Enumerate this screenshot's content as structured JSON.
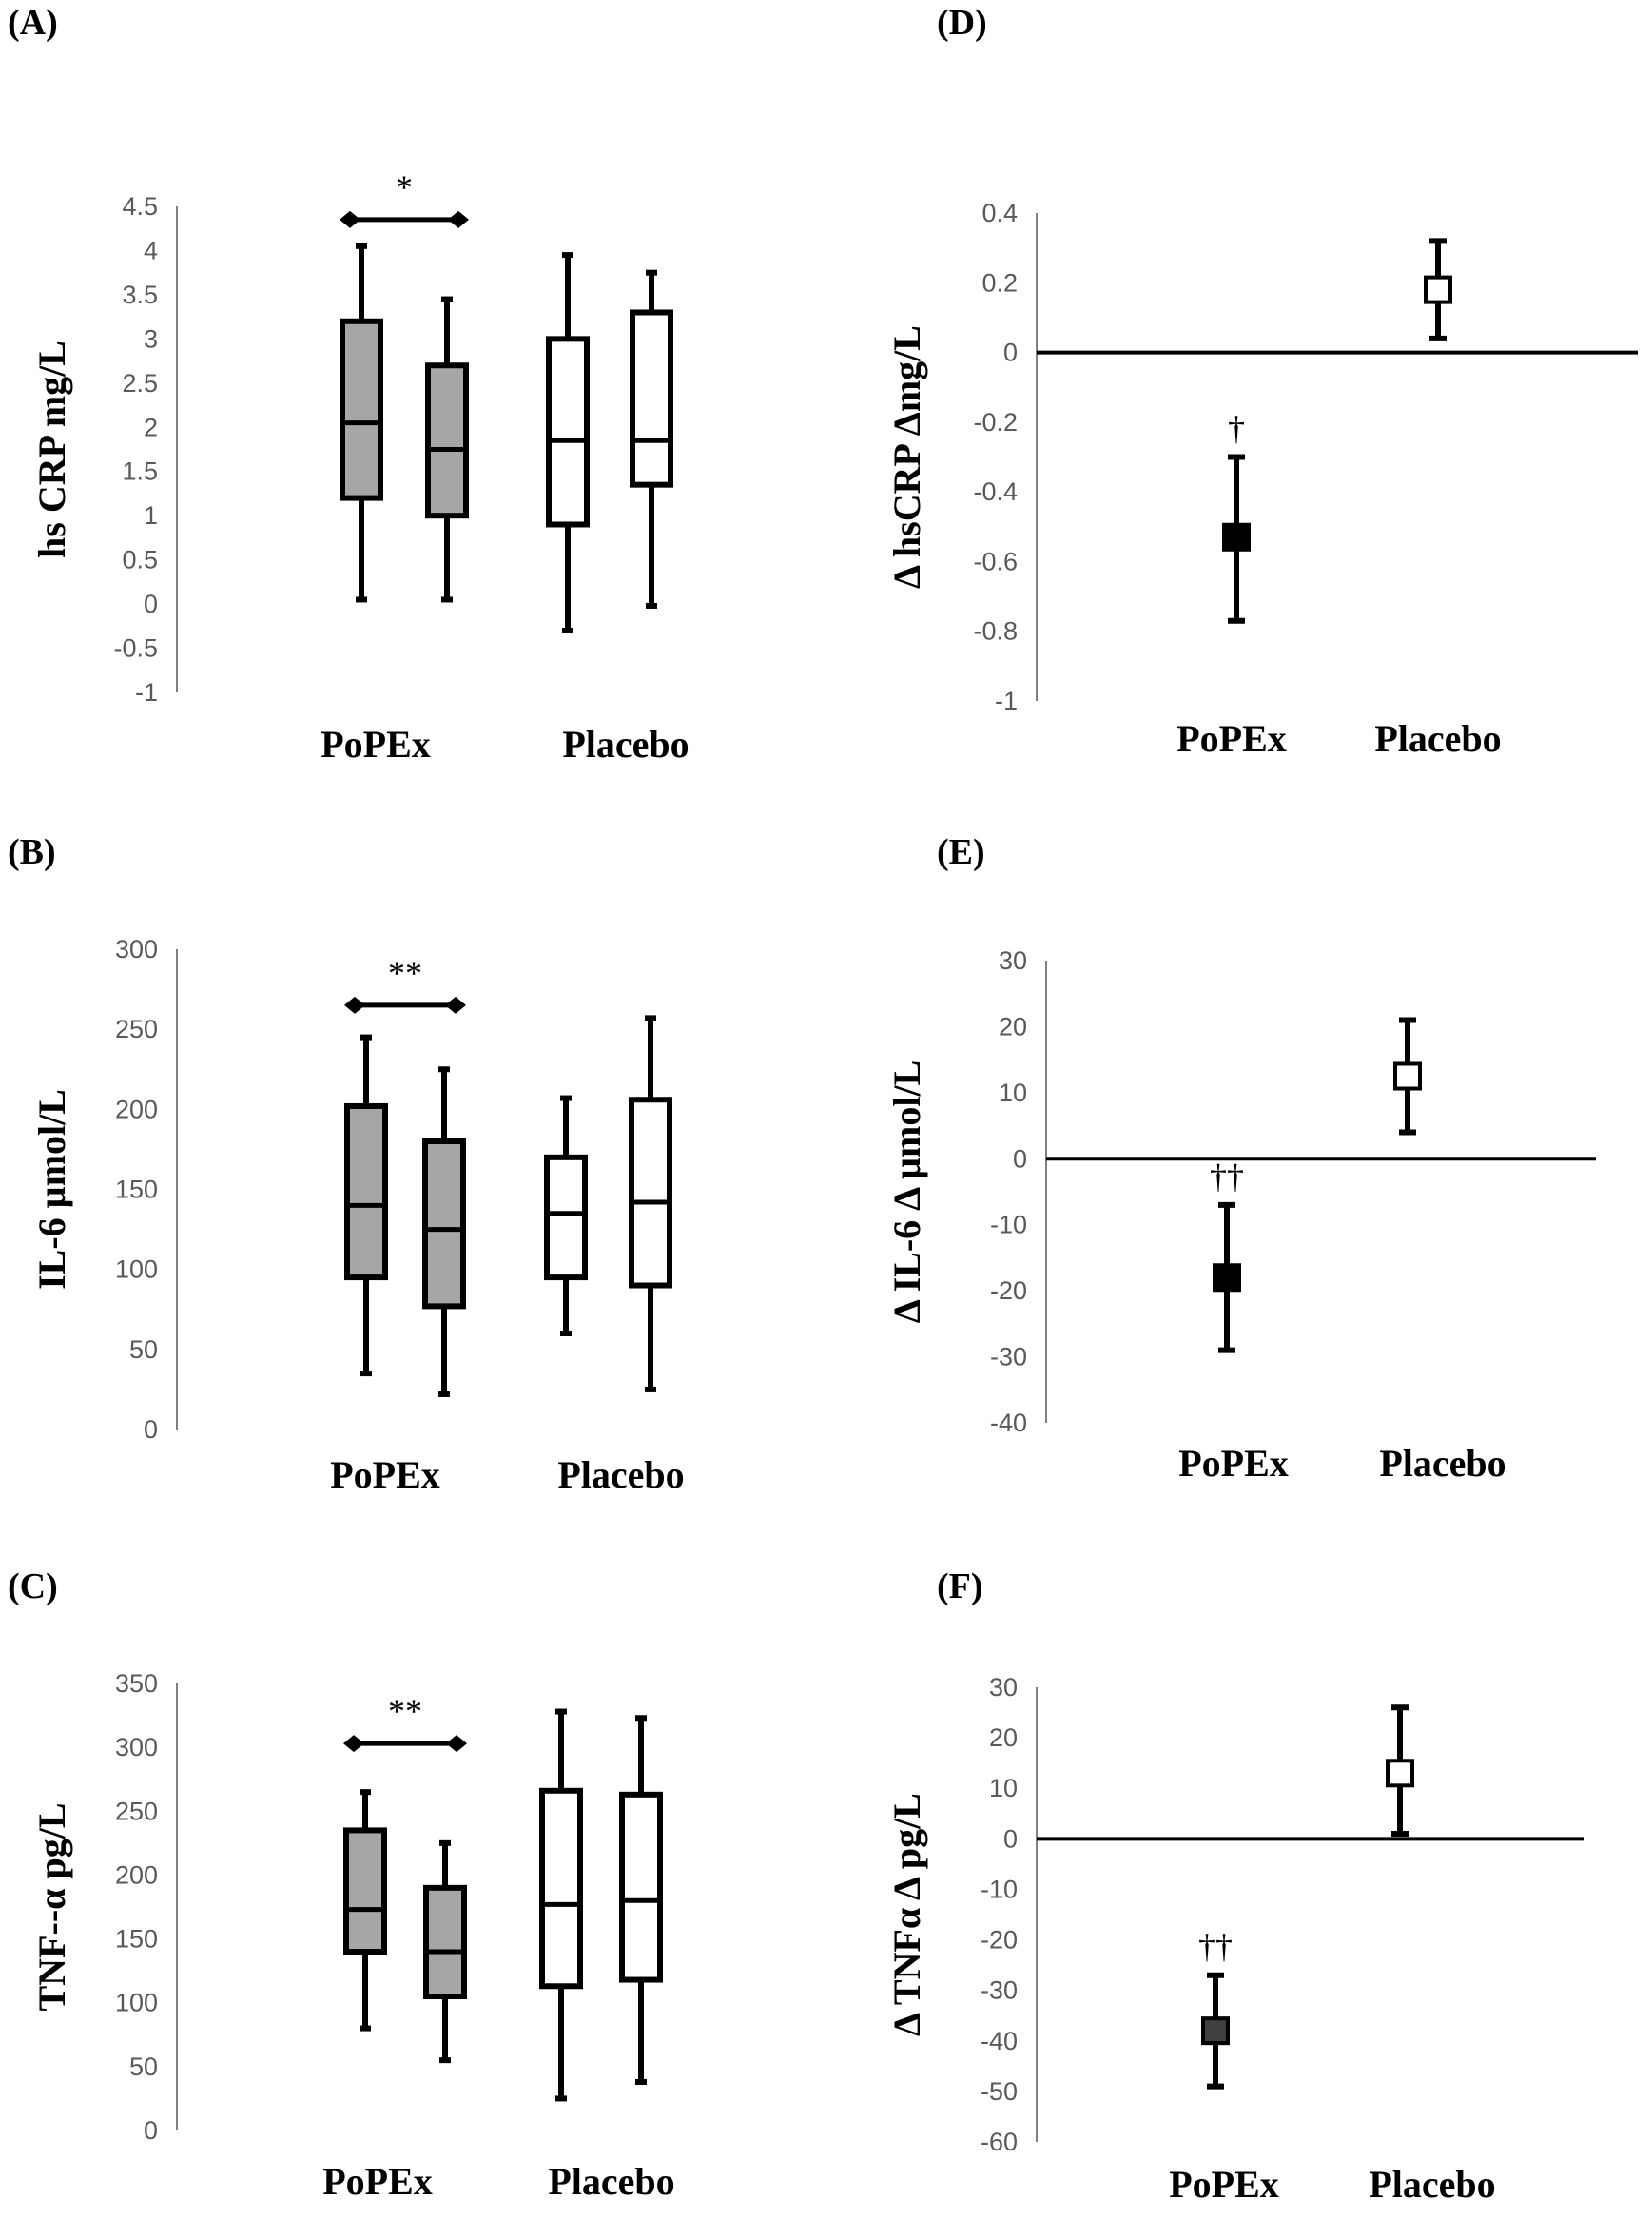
{
  "chart_data": [
    {
      "panel": "(A)",
      "type": "box",
      "ylabel": "hs CRP mg/L",
      "ylim": [
        -1,
        4.5
      ],
      "yticks": [
        "4.5",
        "4",
        "3.5",
        "3",
        "2.5",
        "2",
        "1.5",
        "1",
        "0.5",
        "0",
        "-0.5",
        "-1"
      ],
      "categories": [
        "PoPEx",
        "Placebo"
      ],
      "boxes": [
        {
          "group": "PoPEx",
          "min": 0.05,
          "q1": 1.2,
          "median": 2.05,
          "q3": 3.2,
          "max": 4.05,
          "fill": "#a6a6a6"
        },
        {
          "group": "PoPEx",
          "min": 0.05,
          "q1": 1.0,
          "median": 1.75,
          "q3": 2.7,
          "max": 3.45,
          "fill": "#a6a6a6"
        },
        {
          "group": "Placebo",
          "min": -0.3,
          "q1": 0.9,
          "median": 1.85,
          "q3": 3.0,
          "max": 3.95,
          "fill": "#ffffff"
        },
        {
          "group": "Placebo",
          "min": -0.02,
          "q1": 1.35,
          "median": 1.85,
          "q3": 3.3,
          "max": 3.75,
          "fill": "#ffffff"
        }
      ],
      "significance": {
        "label": "*",
        "level": 4.35
      }
    },
    {
      "panel": "(B)",
      "type": "box",
      "ylabel": "IL-6 µmol/L",
      "ylim": [
        0,
        300
      ],
      "yticks": [
        "300",
        "250",
        "200",
        "150",
        "100",
        "50",
        "0"
      ],
      "categories": [
        "PoPEx",
        "Placebo"
      ],
      "boxes": [
        {
          "group": "PoPEx",
          "min": 35,
          "q1": 95,
          "median": 140,
          "q3": 202,
          "max": 245,
          "fill": "#a6a6a6"
        },
        {
          "group": "PoPEx",
          "min": 22,
          "q1": 77,
          "median": 125,
          "q3": 180,
          "max": 225,
          "fill": "#a6a6a6"
        },
        {
          "group": "Placebo",
          "min": 60,
          "q1": 95,
          "median": 135,
          "q3": 170,
          "max": 207,
          "fill": "#ffffff"
        },
        {
          "group": "Placebo",
          "min": 25,
          "q1": 90,
          "median": 142,
          "q3": 206,
          "max": 257,
          "fill": "#ffffff"
        }
      ],
      "significance": {
        "label": "**",
        "level": 265
      }
    },
    {
      "panel": "(C)",
      "type": "box",
      "ylabel": "TNF--α pg/L",
      "ylim": [
        0,
        350
      ],
      "yticks": [
        "350",
        "300",
        "250",
        "200",
        "150",
        "100",
        "50",
        "0"
      ],
      "categories": [
        "PoPEx",
        "Placebo"
      ],
      "boxes": [
        {
          "group": "PoPEx",
          "min": 80,
          "q1": 140,
          "median": 173,
          "q3": 235,
          "max": 265,
          "fill": "#a6a6a6"
        },
        {
          "group": "PoPEx",
          "min": 55,
          "q1": 105,
          "median": 140,
          "q3": 190,
          "max": 225,
          "fill": "#a6a6a6"
        },
        {
          "group": "Placebo",
          "min": 25,
          "q1": 113,
          "median": 177,
          "q3": 266,
          "max": 328,
          "fill": "#ffffff"
        },
        {
          "group": "Placebo",
          "min": 38,
          "q1": 118,
          "median": 180,
          "q3": 263,
          "max": 323,
          "fill": "#ffffff"
        }
      ],
      "significance": {
        "label": "**",
        "level": 303
      }
    },
    {
      "panel": "(D)",
      "type": "errorbar",
      "ylabel": "Δ hsCRP Δmg/L",
      "ylim": [
        -1,
        0.4
      ],
      "yticks": [
        "0.4",
        "0.2",
        "0",
        "-0.2",
        "-0.4",
        "-0.6",
        "-0.8",
        "-1"
      ],
      "categories": [
        "PoPEx",
        "Placebo"
      ],
      "points": [
        {
          "group": "PoPEx",
          "mean": -0.53,
          "lower": -0.77,
          "upper": -0.3,
          "fill": "#000000",
          "annotation": "†"
        },
        {
          "group": "Placebo",
          "mean": 0.18,
          "lower": 0.04,
          "upper": 0.32,
          "fill": "#ffffff",
          "annotation": ""
        }
      ]
    },
    {
      "panel": "(E)",
      "type": "errorbar",
      "ylabel": "Δ IL-6 Δ µmol/L",
      "ylim": [
        -40,
        30
      ],
      "yticks": [
        "30",
        "20",
        "10",
        "0",
        "-10",
        "-20",
        "-30",
        "-40"
      ],
      "categories": [
        "PoPEx",
        "Placebo"
      ],
      "points": [
        {
          "group": "PoPEx",
          "mean": -18,
          "lower": -29,
          "upper": -7,
          "fill": "#000000",
          "annotation": "††"
        },
        {
          "group": "Placebo",
          "mean": 12.5,
          "lower": 4,
          "upper": 21,
          "fill": "#ffffff",
          "annotation": ""
        }
      ]
    },
    {
      "panel": "(F)",
      "type": "errorbar",
      "ylabel": "Δ TNFα Δ pg/L",
      "ylim": [
        -60,
        30
      ],
      "yticks": [
        "30",
        "20",
        "10",
        "0",
        "-10",
        "-20",
        "-30",
        "-40",
        "-50",
        "-60"
      ],
      "categories": [
        "PoPEx",
        "Placebo"
      ],
      "points": [
        {
          "group": "PoPEx",
          "mean": -38,
          "lower": -49,
          "upper": -27,
          "fill": "#404040",
          "annotation": "††"
        },
        {
          "group": "Placebo",
          "mean": 13,
          "lower": 1,
          "upper": 26,
          "fill": "#ffffff",
          "annotation": ""
        }
      ]
    }
  ]
}
